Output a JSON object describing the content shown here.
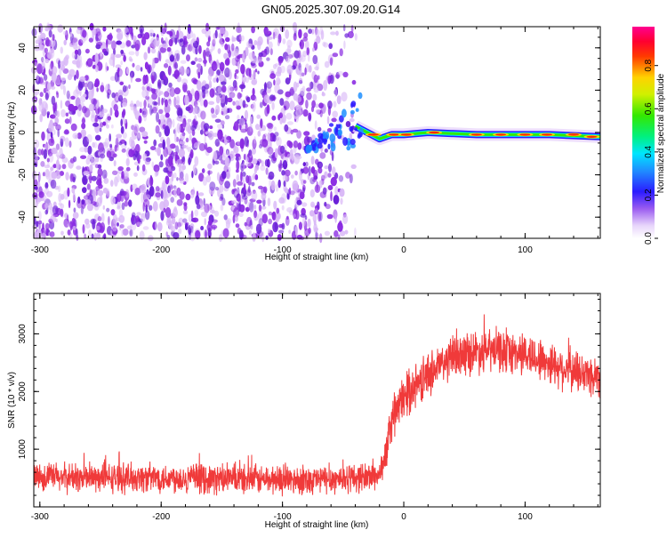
{
  "title": "GN05.2025.307.09.20.G14",
  "colors": {
    "snr_line": "#f03a3a",
    "noise_a": "#8a2be2",
    "noise_b": "#6a1fd8",
    "noise_faint": "#d9b8f7"
  },
  "chart_data": [
    {
      "type": "heatmap",
      "title": "GN05.2025.307.09.20.G14",
      "xlabel": "Height of straight line (km)",
      "ylabel": "Frequency (Hz)",
      "xlim": [
        -305,
        162
      ],
      "ylim": [
        -50,
        50
      ],
      "xticks": [
        -300,
        -200,
        -100,
        0,
        100
      ],
      "xtick_labels": [
        "-300",
        "-200",
        "-100",
        "0",
        "100"
      ],
      "yticks": [
        -40,
        -20,
        0,
        20,
        40
      ],
      "ytick_labels": [
        "-40",
        "-20",
        "0",
        "20",
        "40"
      ],
      "colorbar": {
        "label": "Normalized spectral amplitude",
        "range": [
          0,
          0.98
        ],
        "ticks": [
          0.0,
          0.2,
          0.4,
          0.6,
          0.8
        ],
        "tick_labels": [
          "0.0",
          "0.2",
          "0.4",
          "0.6",
          "0.8"
        ]
      },
      "noise_region_x": [
        -305,
        -38
      ],
      "signal_band": {
        "description_points_x": [
          -40,
          -30,
          -20,
          -10,
          0,
          20,
          60,
          100,
          120,
          162
        ],
        "description_points_y": [
          3,
          0,
          -3,
          -1,
          -1,
          0,
          -1,
          -1,
          -1,
          -2
        ]
      }
    },
    {
      "type": "line",
      "xlabel": "Height of straight line (km)",
      "ylabel": "SNR (10 * v/v)",
      "xlim": [
        -305,
        162
      ],
      "ylim": [
        0,
        3700
      ],
      "xticks": [
        -300,
        -200,
        -100,
        0,
        100
      ],
      "xtick_labels": [
        "-300",
        "-200",
        "-100",
        "0",
        "100"
      ],
      "yticks": [
        1000,
        2000,
        3000
      ],
      "ytick_labels": [
        "1000",
        "2000",
        "3000"
      ],
      "trend_x": [
        -305,
        -250,
        -200,
        -150,
        -100,
        -60,
        -30,
        -20,
        -15,
        -10,
        0,
        20,
        40,
        60,
        80,
        100,
        120,
        140,
        162
      ],
      "trend_y": [
        520,
        500,
        510,
        480,
        470,
        480,
        520,
        560,
        900,
        1500,
        1900,
        2300,
        2600,
        2700,
        2700,
        2650,
        2500,
        2350,
        2250
      ],
      "noise_amplitude_low": 260,
      "noise_amplitude_high": 380
    }
  ]
}
